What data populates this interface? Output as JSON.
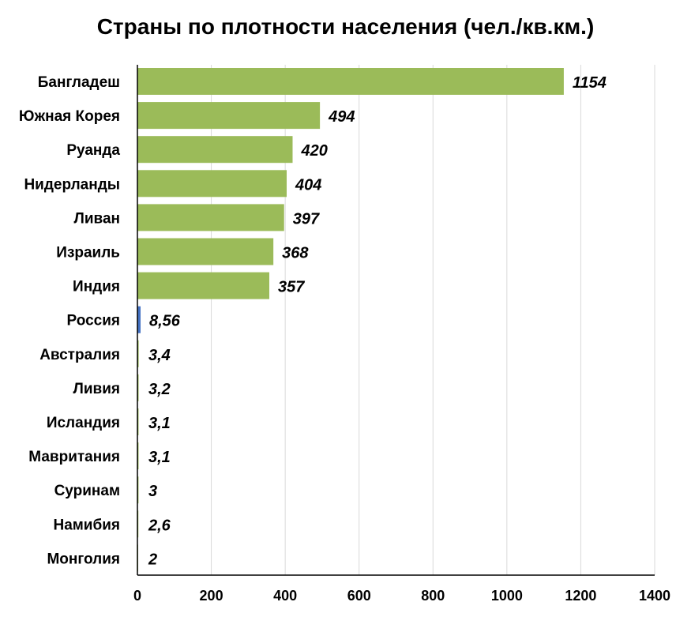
{
  "chart_data": {
    "type": "bar",
    "orientation": "horizontal",
    "title": "Страны по плотности населения (чел./кв.км.)",
    "xlabel": "",
    "ylabel": "",
    "xlim": [
      0,
      1400
    ],
    "x_ticks": [
      0,
      200,
      400,
      600,
      800,
      1000,
      1200,
      1400
    ],
    "grid": "vertical",
    "legend": "none",
    "categories": [
      "Бангладеш",
      "Южная Корея",
      "Руанда",
      "Нидерланды",
      "Ливан",
      "Израиль",
      "Индия",
      "Россия",
      "Австралия",
      "Ливия",
      "Исландия",
      "Мавритания",
      "Суринам",
      "Намибия",
      "Монголия"
    ],
    "values": [
      1154,
      494,
      420,
      404,
      397,
      368,
      357,
      8.56,
      3.4,
      3.2,
      3.1,
      3.1,
      3,
      2.6,
      2
    ],
    "value_labels": [
      "1154",
      "494",
      "420",
      "404",
      "397",
      "368",
      "357",
      "8,56",
      "3,4",
      "3,2",
      "3,1",
      "3,1",
      "3",
      "2,6",
      "2"
    ],
    "colors": {
      "default_bar": "#9BBB59",
      "highlight_bar": "#4472C4",
      "highlight_category": "Россия",
      "grid": "#D9D9D9",
      "axis": "#000000"
    }
  }
}
